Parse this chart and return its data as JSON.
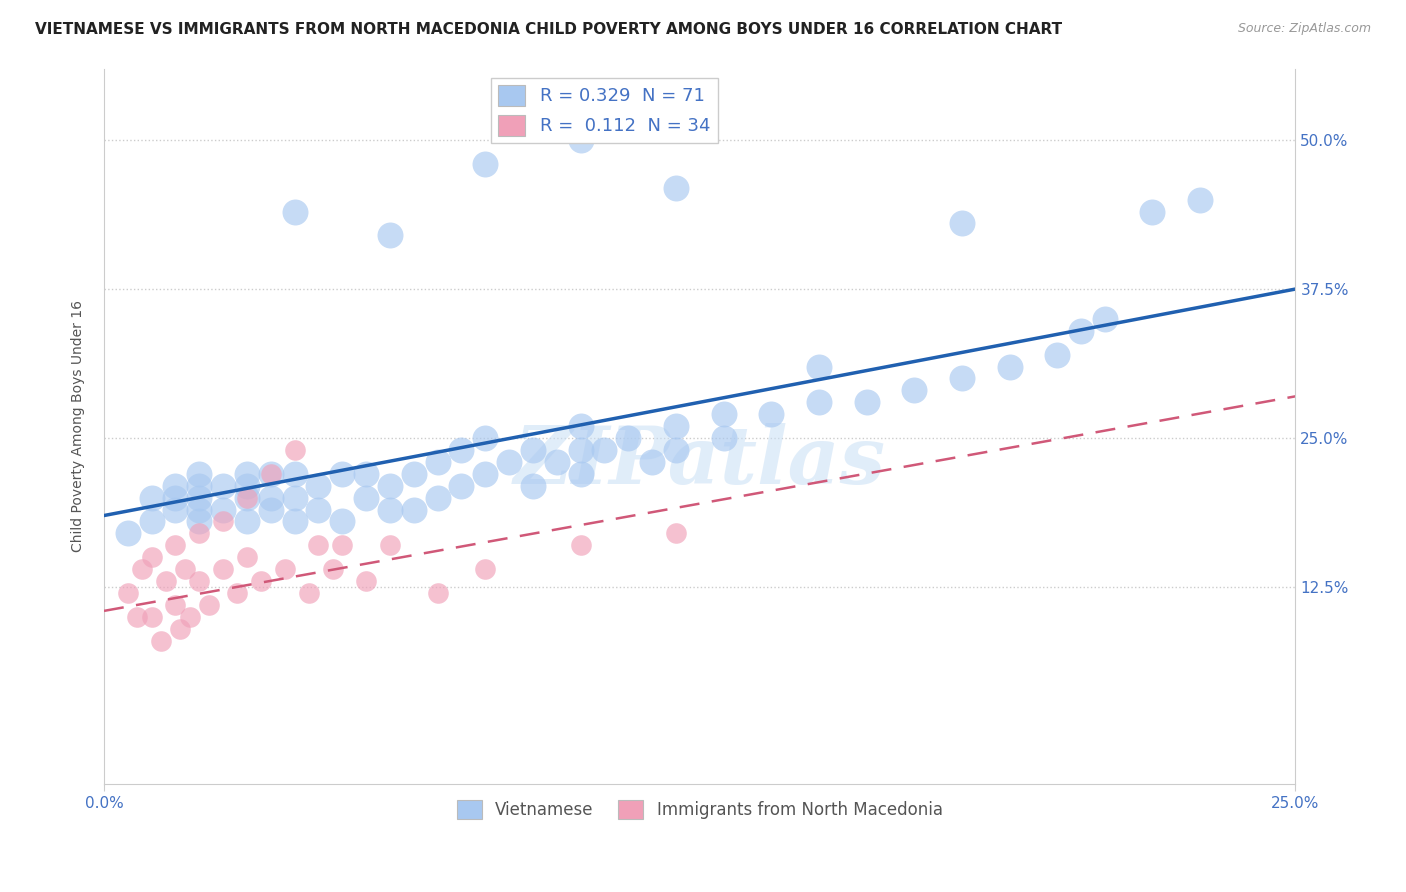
{
  "title": "VIETNAMESE VS IMMIGRANTS FROM NORTH MACEDONIA CHILD POVERTY AMONG BOYS UNDER 16 CORRELATION CHART",
  "source": "Source: ZipAtlas.com",
  "ylabel_label": "Child Poverty Among Boys Under 16",
  "xlim": [
    0.0,
    0.25
  ],
  "ylim": [
    -0.04,
    0.56
  ],
  "yticks": [
    0.125,
    0.25,
    0.375,
    0.5
  ],
  "ytick_labels": [
    "12.5%",
    "25.0%",
    "37.5%",
    "50.0%"
  ],
  "xticks": [
    0.0,
    0.25
  ],
  "xtick_labels": [
    "0.0%",
    "25.0%"
  ],
  "R_vietnamese": 0.329,
  "N_vietnamese": 71,
  "R_macedonia": 0.112,
  "N_macedonia": 34,
  "scatter_color_vietnamese": "#a8c8f0",
  "scatter_color_macedonia": "#f0a0b8",
  "line_color_vietnamese": "#2060b0",
  "line_color_macedonia": "#d05878",
  "watermark": "ZIPatlas",
  "title_fontsize": 11,
  "axis_label_fontsize": 10,
  "tick_fontsize": 11,
  "tick_color": "#4472c4",
  "background_color": "#ffffff",
  "grid_color": "#cccccc",
  "legend_label_v": "R = 0.329  N = 71",
  "legend_label_m": "R =  0.112  N = 34",
  "bottom_legend_v": "Vietnamese",
  "bottom_legend_m": "Immigrants from North Macedonia",
  "vietnamese_x": [
    0.005,
    0.01,
    0.01,
    0.015,
    0.015,
    0.015,
    0.02,
    0.02,
    0.02,
    0.02,
    0.02,
    0.025,
    0.025,
    0.03,
    0.03,
    0.03,
    0.03,
    0.035,
    0.035,
    0.035,
    0.04,
    0.04,
    0.04,
    0.045,
    0.045,
    0.05,
    0.05,
    0.055,
    0.055,
    0.06,
    0.06,
    0.065,
    0.065,
    0.07,
    0.07,
    0.075,
    0.075,
    0.08,
    0.08,
    0.085,
    0.09,
    0.09,
    0.095,
    0.1,
    0.1,
    0.1,
    0.105,
    0.11,
    0.115,
    0.12,
    0.12,
    0.13,
    0.13,
    0.14,
    0.15,
    0.16,
    0.17,
    0.18,
    0.19,
    0.2,
    0.205,
    0.21,
    0.04,
    0.06,
    0.08,
    0.1,
    0.12,
    0.15,
    0.18,
    0.22,
    0.23
  ],
  "vietnamese_y": [
    0.17,
    0.18,
    0.2,
    0.19,
    0.2,
    0.21,
    0.18,
    0.19,
    0.2,
    0.21,
    0.22,
    0.19,
    0.21,
    0.18,
    0.2,
    0.21,
    0.22,
    0.19,
    0.2,
    0.22,
    0.18,
    0.2,
    0.22,
    0.19,
    0.21,
    0.18,
    0.22,
    0.2,
    0.22,
    0.19,
    0.21,
    0.19,
    0.22,
    0.2,
    0.23,
    0.21,
    0.24,
    0.22,
    0.25,
    0.23,
    0.21,
    0.24,
    0.23,
    0.22,
    0.24,
    0.26,
    0.24,
    0.25,
    0.23,
    0.24,
    0.26,
    0.25,
    0.27,
    0.27,
    0.28,
    0.28,
    0.29,
    0.3,
    0.31,
    0.32,
    0.34,
    0.35,
    0.44,
    0.42,
    0.48,
    0.5,
    0.46,
    0.31,
    0.43,
    0.44,
    0.45
  ],
  "macedonia_x": [
    0.005,
    0.007,
    0.008,
    0.01,
    0.01,
    0.012,
    0.013,
    0.015,
    0.015,
    0.016,
    0.017,
    0.018,
    0.02,
    0.02,
    0.022,
    0.025,
    0.025,
    0.028,
    0.03,
    0.03,
    0.033,
    0.035,
    0.038,
    0.04,
    0.043,
    0.045,
    0.048,
    0.05,
    0.055,
    0.06,
    0.07,
    0.08,
    0.1,
    0.12
  ],
  "macedonia_y": [
    0.12,
    0.1,
    0.14,
    0.1,
    0.15,
    0.08,
    0.13,
    0.11,
    0.16,
    0.09,
    0.14,
    0.1,
    0.13,
    0.17,
    0.11,
    0.14,
    0.18,
    0.12,
    0.15,
    0.2,
    0.13,
    0.22,
    0.14,
    0.24,
    0.12,
    0.16,
    0.14,
    0.16,
    0.13,
    0.16,
    0.12,
    0.14,
    0.16,
    0.17
  ]
}
